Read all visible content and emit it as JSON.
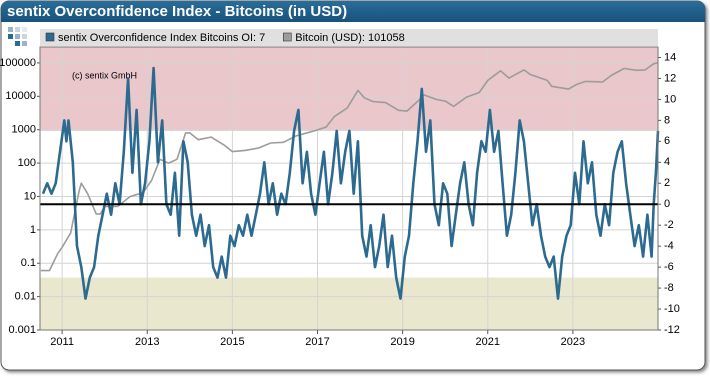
{
  "chart_data": {
    "type": "line",
    "title": "sentix Overconfidence Index - Bitcoins (in USD)",
    "annotation": "(c) sentix GmbH",
    "xlim": [
      2010.48,
      2025.0
    ],
    "xticks": [
      2011,
      2013,
      2015,
      2017,
      2019,
      2021,
      2023
    ],
    "ylim": [
      0.001,
      300000
    ],
    "yscale": "log",
    "yticks": [
      100000,
      10000,
      1000,
      100,
      10,
      1,
      0.1,
      0.01,
      0.001
    ],
    "y2lim": [
      -12,
      15
    ],
    "y2ticks": [
      14,
      12,
      10,
      8,
      6,
      4,
      2,
      0,
      -2,
      -4,
      -6,
      -8,
      -10,
      -12
    ],
    "grid": true,
    "bands": [
      {
        "from": 7,
        "to": 15,
        "color": "#e9c7cb"
      },
      {
        "from": -12,
        "to": -7,
        "color": "#e9e7cd"
      }
    ],
    "series": [
      {
        "name": "sentix Overconfidence Index Bitcoins OI: 7",
        "color": "#2c6b8f",
        "axis": "y2",
        "x": [
          2010.55,
          2010.65,
          2010.75,
          2010.85,
          2010.95,
          2011.05,
          2011.1,
          2011.15,
          2011.25,
          2011.35,
          2011.45,
          2011.55,
          2011.65,
          2011.75,
          2011.85,
          2011.95,
          2012.05,
          2012.15,
          2012.25,
          2012.35,
          2012.45,
          2012.55,
          2012.65,
          2012.75,
          2012.85,
          2012.95,
          2013.05,
          2013.15,
          2013.25,
          2013.35,
          2013.45,
          2013.55,
          2013.65,
          2013.75,
          2013.85,
          2013.95,
          2014.05,
          2014.15,
          2014.25,
          2014.35,
          2014.45,
          2014.55,
          2014.65,
          2014.75,
          2014.85,
          2014.95,
          2015.05,
          2015.15,
          2015.25,
          2015.35,
          2015.45,
          2015.55,
          2015.65,
          2015.75,
          2015.85,
          2015.95,
          2016.05,
          2016.15,
          2016.25,
          2016.35,
          2016.45,
          2016.55,
          2016.65,
          2016.75,
          2016.85,
          2016.95,
          2017.05,
          2017.15,
          2017.25,
          2017.35,
          2017.45,
          2017.55,
          2017.65,
          2017.75,
          2017.85,
          2017.95,
          2018.05,
          2018.15,
          2018.25,
          2018.35,
          2018.45,
          2018.55,
          2018.65,
          2018.75,
          2018.85,
          2018.95,
          2019.05,
          2019.15,
          2019.25,
          2019.35,
          2019.45,
          2019.55,
          2019.65,
          2019.75,
          2019.85,
          2019.95,
          2020.05,
          2020.15,
          2020.25,
          2020.35,
          2020.45,
          2020.55,
          2020.65,
          2020.75,
          2020.85,
          2020.95,
          2021.05,
          2021.15,
          2021.25,
          2021.35,
          2021.45,
          2021.55,
          2021.65,
          2021.75,
          2021.85,
          2021.95,
          2022.05,
          2022.15,
          2022.25,
          2022.35,
          2022.45,
          2022.55,
          2022.65,
          2022.75,
          2022.85,
          2022.95,
          2023.05,
          2023.15,
          2023.25,
          2023.35,
          2023.45,
          2023.55,
          2023.65,
          2023.75,
          2023.85,
          2023.95,
          2024.05,
          2024.15,
          2024.25,
          2024.35,
          2024.45,
          2024.55,
          2024.65,
          2024.75,
          2024.85,
          2024.9,
          2024.95,
          2025.0
        ],
        "values": [
          1,
          2,
          1,
          2,
          5,
          8,
          6,
          8,
          4,
          -4,
          -6,
          -9,
          -7,
          -6,
          -3,
          -1,
          1,
          -1,
          2,
          0,
          5,
          12,
          3,
          9,
          0,
          2,
          6,
          13,
          4,
          8,
          0,
          -1,
          3,
          -3,
          6,
          4,
          -1,
          -3,
          -1,
          -4,
          -2,
          -6,
          -7,
          -5,
          -7,
          -3,
          -4,
          -2,
          -3,
          -1,
          -3,
          -1,
          1,
          4,
          0,
          2,
          -1,
          1,
          0,
          3,
          7,
          9,
          2,
          5,
          1,
          -1,
          2,
          5,
          0,
          3,
          7,
          2,
          5,
          7,
          1,
          6,
          -3,
          -5,
          -2,
          -6,
          -4,
          -1,
          -6,
          -3,
          -7,
          -9,
          -5,
          -3,
          2,
          6,
          11,
          5,
          8,
          0,
          -2,
          2,
          1,
          -4,
          -1,
          2,
          4,
          0,
          -2,
          3,
          6,
          5,
          9,
          5,
          7,
          2,
          -3,
          -1,
          3,
          8,
          6,
          2,
          -2,
          0,
          -3,
          -5,
          -6,
          -5,
          -9,
          -5,
          -3,
          -2,
          3,
          0,
          6,
          2,
          4,
          -1,
          -3,
          0,
          -2,
          3,
          5,
          6,
          2,
          -1,
          -4,
          -2,
          -5,
          -1,
          -5,
          0,
          3,
          7
        ]
      },
      {
        "name": "Bitcoin (USD): 101058",
        "color": "#9c9c9c",
        "axis": "y",
        "x": [
          2010.5,
          2010.7,
          2010.9,
          2011.0,
          2011.2,
          2011.4,
          2011.45,
          2011.6,
          2011.8,
          2011.9,
          2012.0,
          2012.3,
          2012.6,
          2012.9,
          2013.1,
          2013.3,
          2013.5,
          2013.7,
          2013.9,
          2014.0,
          2014.2,
          2014.5,
          2014.8,
          2015.0,
          2015.3,
          2015.6,
          2015.9,
          2016.2,
          2016.5,
          2016.9,
          2017.2,
          2017.4,
          2017.7,
          2017.95,
          2018.1,
          2018.3,
          2018.6,
          2018.9,
          2019.1,
          2019.4,
          2019.5,
          2019.8,
          2020.0,
          2020.2,
          2020.5,
          2020.8,
          2021.0,
          2021.3,
          2021.5,
          2021.85,
          2022.0,
          2022.4,
          2022.5,
          2022.9,
          2023.1,
          2023.3,
          2023.7,
          2023.9,
          2024.2,
          2024.5,
          2024.7,
          2024.9,
          2025.0
        ],
        "values": [
          0.06,
          0.06,
          0.2,
          0.3,
          0.8,
          15,
          25,
          12,
          3,
          3,
          5,
          5,
          10,
          13,
          30,
          130,
          100,
          130,
          800,
          800,
          500,
          600,
          350,
          220,
          240,
          280,
          400,
          420,
          650,
          900,
          1200,
          2500,
          4500,
          15000,
          9000,
          7000,
          6500,
          3800,
          3600,
          8000,
          11000,
          8000,
          7200,
          5000,
          9500,
          13000,
          30000,
          58000,
          35000,
          62000,
          45000,
          30000,
          20000,
          16500,
          23000,
          28000,
          27000,
          42000,
          68000,
          60000,
          62000,
          95000,
          101058
        ]
      }
    ]
  }
}
